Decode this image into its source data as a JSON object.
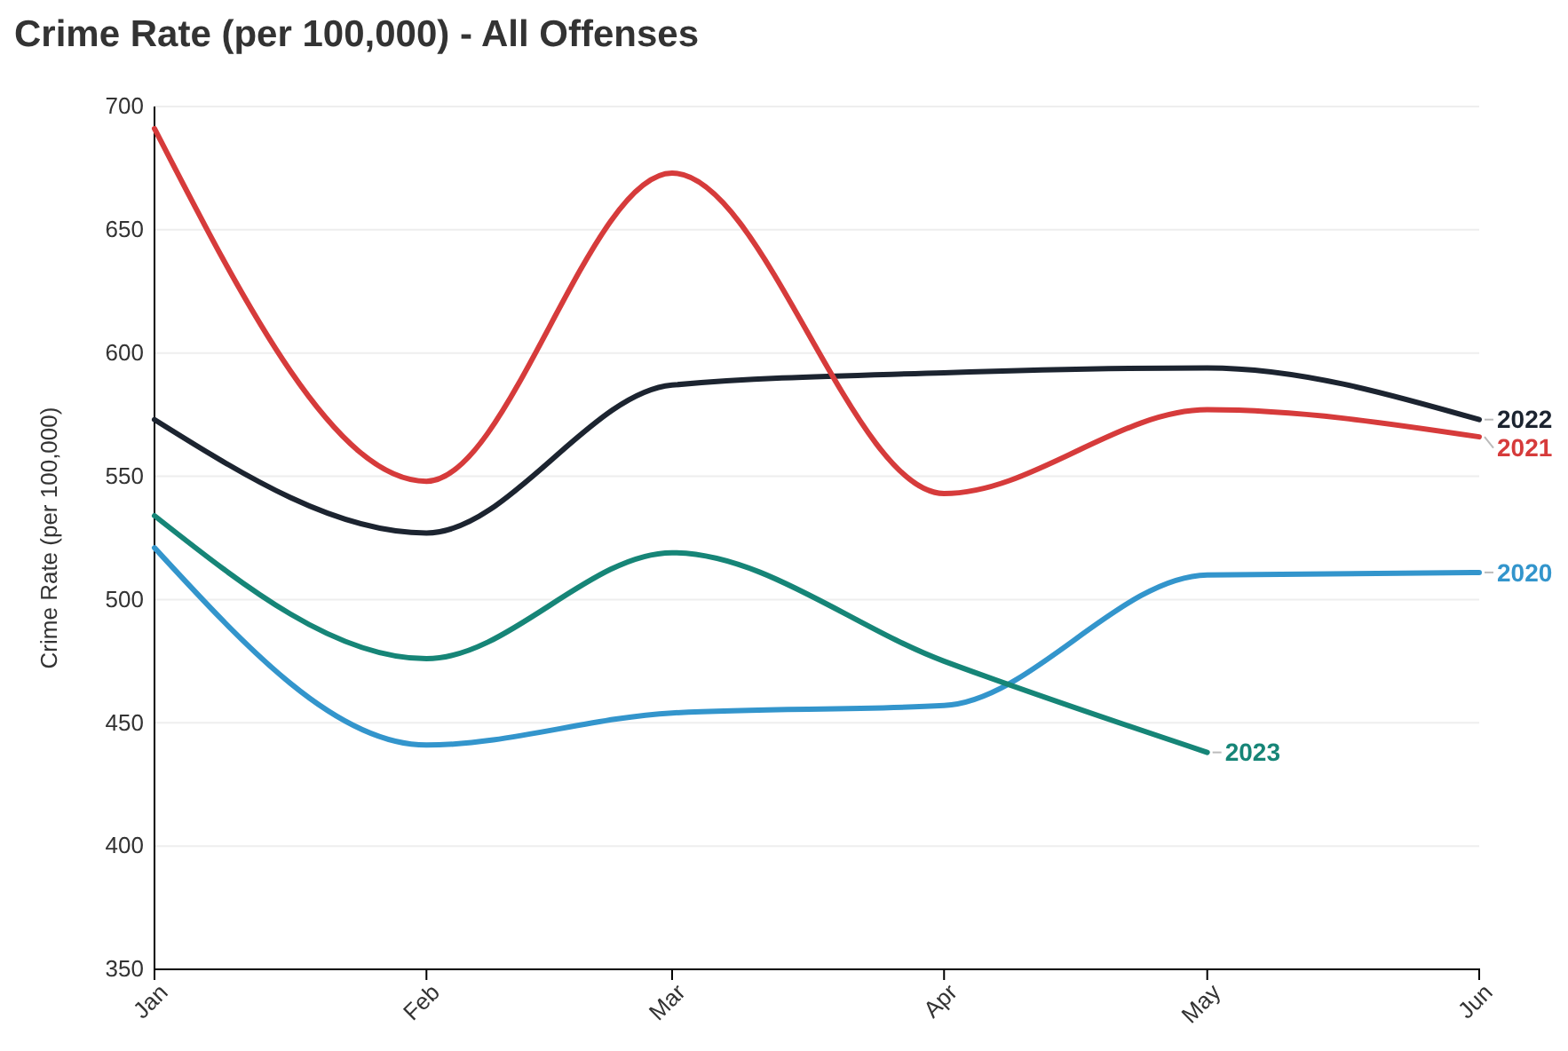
{
  "chart_data": {
    "type": "line",
    "title": "Crime Rate (per 100,000) - All Offenses",
    "ylabel": "Crime Rate (per 100,000)",
    "x": [
      "--01-01",
      "--02-01",
      "--03-01",
      "--04-01",
      "--05-01",
      "--06-01"
    ],
    "xlim": [
      "--01-01",
      "--06-01"
    ],
    "xticks": [
      {
        "value": "--01-01",
        "label": "Jan"
      },
      {
        "value": "--02-01",
        "label": "Feb"
      },
      {
        "value": "--03-01",
        "label": "Mar"
      },
      {
        "value": "--04-01",
        "label": "Apr"
      },
      {
        "value": "--05-01",
        "label": "May"
      },
      {
        "value": "--06-01",
        "label": "Jun"
      }
    ],
    "ylim": [
      350,
      700
    ],
    "yticks": [
      350,
      400,
      450,
      500,
      550,
      600,
      650,
      700
    ],
    "grid": "y",
    "legend": false,
    "marker": "none",
    "line_style": "solid",
    "series": [
      {
        "name": "2022",
        "color": "#1c2430",
        "values": [
          573,
          527,
          587,
          592,
          594,
          573
        ]
      },
      {
        "name": "2021",
        "color": "#d63b3b",
        "values": [
          691,
          548,
          673,
          543,
          577,
          566
        ]
      },
      {
        "name": "2020",
        "color": "#3395cc",
        "values": [
          521,
          441,
          454,
          457,
          510,
          511
        ]
      },
      {
        "name": "2023",
        "color": "#168577",
        "values": [
          534,
          476,
          519,
          475,
          438,
          null
        ]
      }
    ]
  }
}
